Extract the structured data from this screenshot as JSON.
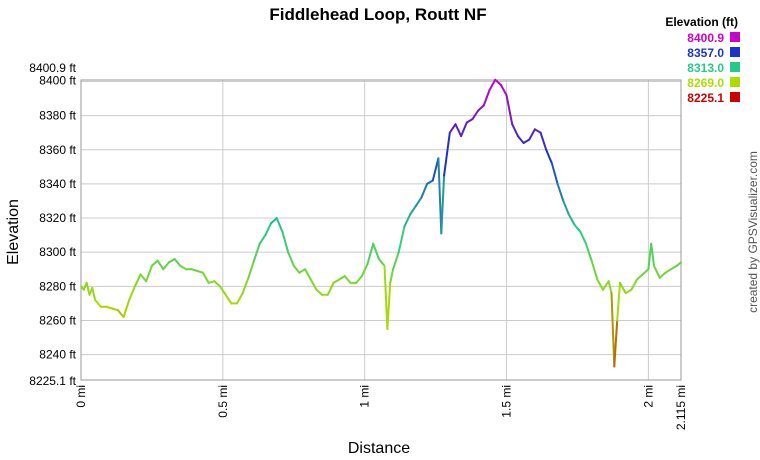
{
  "chart_data": {
    "type": "line",
    "title": "Fiddlehead Loop, Routt NF",
    "xlabel": "Distance",
    "ylabel": "Elevation",
    "xlim": [
      0,
      2.115
    ],
    "ylim": [
      8225.1,
      8400.9
    ],
    "x_ticks": [
      {
        "value": 0,
        "label": "0 mi"
      },
      {
        "value": 0.5,
        "label": "0.5 mi"
      },
      {
        "value": 1,
        "label": "1 mi"
      },
      {
        "value": 1.5,
        "label": "1.5 mi"
      },
      {
        "value": 2,
        "label": "2 mi"
      },
      {
        "value": 2.115,
        "label": "2.115 mi"
      }
    ],
    "y_ticks": [
      {
        "value": 8225.1,
        "label": "8225.1 ft"
      },
      {
        "value": 8240,
        "label": "8240 ft"
      },
      {
        "value": 8260,
        "label": "8260 ft"
      },
      {
        "value": 8280,
        "label": "8280 ft"
      },
      {
        "value": 8300,
        "label": "8300 ft"
      },
      {
        "value": 8320,
        "label": "8320 ft"
      },
      {
        "value": 8340,
        "label": "8340 ft"
      },
      {
        "value": 8360,
        "label": "8360 ft"
      },
      {
        "value": 8380,
        "label": "8380 ft"
      },
      {
        "value": 8400,
        "label": "8400 ft"
      },
      {
        "value": 8400.9,
        "label": "8400.9 ft"
      }
    ],
    "grid": true,
    "legend": {
      "title": "Elevation (ft)",
      "placement": "top-right",
      "entries": [
        {
          "label": "8400.9",
          "color": "#cc00cc"
        },
        {
          "label": "8357.0",
          "color": "#1a33cc"
        },
        {
          "label": "8313.0",
          "color": "#22cc88"
        },
        {
          "label": "8269.0",
          "color": "#aadd00"
        },
        {
          "label": "8225.1",
          "color": "#cc0000"
        }
      ]
    },
    "series": [
      {
        "x": [
          0,
          0.01,
          0.02,
          0.03,
          0.04,
          0.05,
          0.06,
          0.07,
          0.09,
          0.11,
          0.13,
          0.15,
          0.17,
          0.19,
          0.21,
          0.23,
          0.25,
          0.27,
          0.29,
          0.31,
          0.33,
          0.35,
          0.37,
          0.39,
          0.41,
          0.43,
          0.45,
          0.47,
          0.49,
          0.51,
          0.53,
          0.55,
          0.57,
          0.59,
          0.61,
          0.63,
          0.65,
          0.67,
          0.69,
          0.71,
          0.73,
          0.75,
          0.77,
          0.79,
          0.81,
          0.83,
          0.85,
          0.87,
          0.89,
          0.91,
          0.93,
          0.95,
          0.97,
          0.99,
          1.01,
          1.03,
          1.05,
          1.07,
          1.08,
          1.09,
          1.1,
          1.12,
          1.14,
          1.16,
          1.18,
          1.2,
          1.22,
          1.24,
          1.26,
          1.27,
          1.28,
          1.3,
          1.32,
          1.34,
          1.36,
          1.38,
          1.4,
          1.42,
          1.44,
          1.46,
          1.48,
          1.5,
          1.52,
          1.54,
          1.56,
          1.58,
          1.6,
          1.62,
          1.64,
          1.66,
          1.68,
          1.7,
          1.72,
          1.74,
          1.76,
          1.78,
          1.8,
          1.82,
          1.84,
          1.86,
          1.87,
          1.88,
          1.89,
          1.9,
          1.92,
          1.94,
          1.96,
          1.98,
          2,
          2.01,
          2.02,
          2.04,
          2.06,
          2.08,
          2.1,
          2.115
        ],
        "values": [
          8280,
          8278,
          8282,
          8275,
          8279,
          8272,
          8270,
          8268,
          8268,
          8267,
          8266,
          8262,
          8272,
          8280,
          8287,
          8283,
          8292,
          8295,
          8290,
          8294,
          8296,
          8292,
          8290,
          8290,
          8289,
          8288,
          8282,
          8283,
          8280,
          8275,
          8270,
          8270,
          8276,
          8285,
          8295,
          8305,
          8310,
          8317,
          8320,
          8312,
          8300,
          8292,
          8288,
          8290,
          8284,
          8278,
          8275,
          8275,
          8282,
          8284,
          8286,
          8282,
          8282,
          8286,
          8293,
          8305,
          8296,
          8292,
          8255,
          8282,
          8290,
          8300,
          8315,
          8322,
          8327,
          8332,
          8340,
          8342,
          8355,
          8311,
          8345,
          8370,
          8375,
          8368,
          8376,
          8378,
          8383,
          8386,
          8395,
          8401,
          8398,
          8392,
          8375,
          8368,
          8364,
          8366,
          8372,
          8370,
          8360,
          8352,
          8340,
          8330,
          8322,
          8316,
          8312,
          8305,
          8295,
          8284,
          8278,
          8283,
          8276,
          8233,
          8260,
          8282,
          8276,
          8278,
          8284,
          8287,
          8290,
          8305,
          8292,
          8285,
          8288,
          8290,
          8292,
          8294
        ]
      }
    ]
  },
  "credit": "created by GPSVisualizer.com"
}
